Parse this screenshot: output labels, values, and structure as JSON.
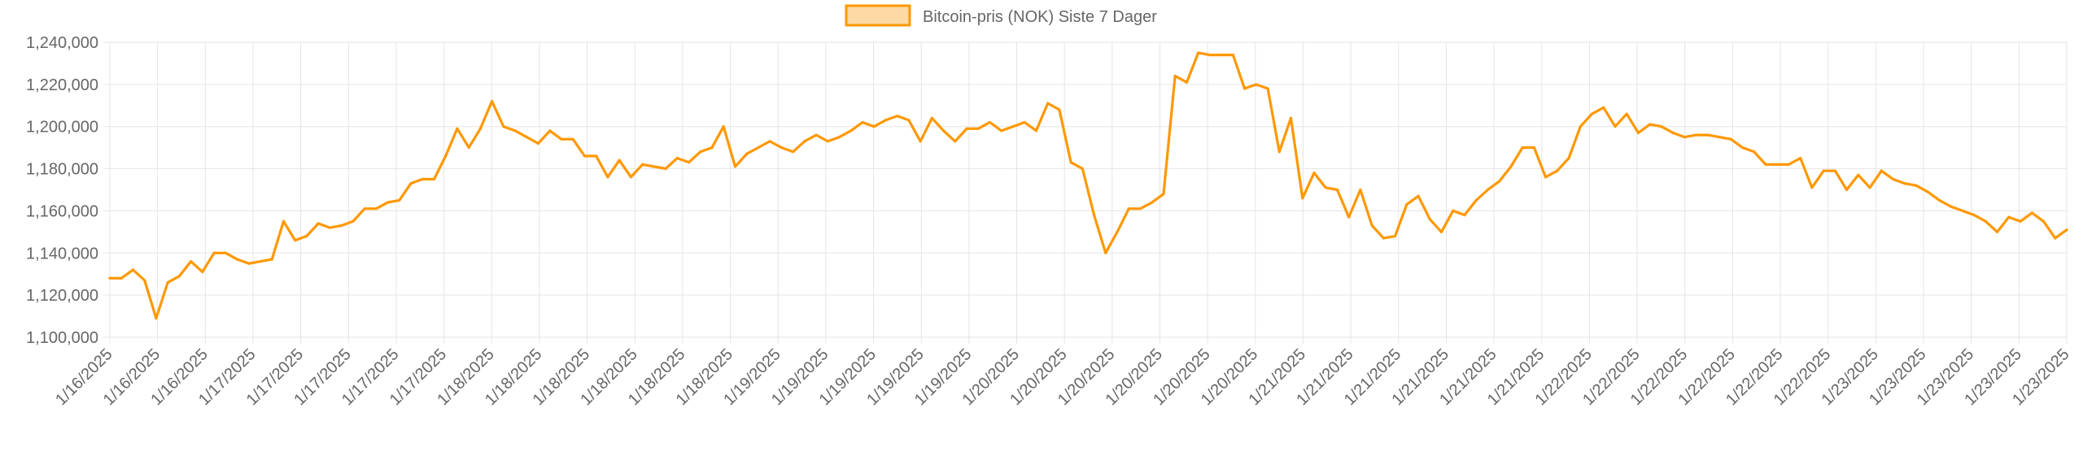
{
  "chart_data": {
    "type": "line",
    "legend": {
      "label": "Bitcoin-pris (NOK) Siste 7 Dager",
      "position": "top"
    },
    "ylim": [
      1100000,
      1240000
    ],
    "y_ticks": [
      "1,240,000",
      "1,220,000",
      "1,200,000",
      "1,180,000",
      "1,160,000",
      "1,140,000",
      "1,120,000",
      "1,100,000"
    ],
    "grid": true,
    "colors": {
      "line": "#FF9800",
      "fill": "#FFD9A3",
      "grid": "#E5E5E5",
      "text": "#666666"
    },
    "x_ticks": [
      "1/16/2025",
      "1/16/2025",
      "1/16/2025",
      "1/17/2025",
      "1/17/2025",
      "1/17/2025",
      "1/17/2025",
      "1/17/2025",
      "1/18/2025",
      "1/18/2025",
      "1/18/2025",
      "1/18/2025",
      "1/18/2025",
      "1/18/2025",
      "1/19/2025",
      "1/19/2025",
      "1/19/2025",
      "1/19/2025",
      "1/19/2025",
      "1/20/2025",
      "1/20/2025",
      "1/20/2025",
      "1/20/2025",
      "1/20/2025",
      "1/20/2025",
      "1/21/2025",
      "1/21/2025",
      "1/21/2025",
      "1/21/2025",
      "1/21/2025",
      "1/21/2025",
      "1/22/2025",
      "1/22/2025",
      "1/22/2025",
      "1/22/2025",
      "1/22/2025",
      "1/22/2025",
      "1/23/2025",
      "1/23/2025",
      "1/23/2025",
      "1/23/2025",
      "1/23/2025"
    ],
    "series": [
      {
        "name": "Bitcoin-pris (NOK) Siste 7 Dager",
        "values": [
          1128000,
          1128000,
          1132000,
          1127000,
          1109000,
          1126000,
          1129000,
          1136000,
          1131000,
          1140000,
          1140000,
          1137000,
          1135000,
          1136000,
          1137000,
          1155000,
          1146000,
          1148000,
          1154000,
          1152000,
          1153000,
          1155000,
          1161000,
          1161000,
          1164000,
          1165000,
          1173000,
          1175000,
          1175000,
          1186000,
          1199000,
          1190000,
          1199000,
          1212000,
          1200000,
          1198000,
          1195000,
          1192000,
          1198000,
          1194000,
          1194000,
          1186000,
          1186000,
          1176000,
          1184000,
          1176000,
          1182000,
          1181000,
          1180000,
          1185000,
          1183000,
          1188000,
          1190000,
          1200000,
          1181000,
          1187000,
          1190000,
          1193000,
          1190000,
          1188000,
          1193000,
          1196000,
          1193000,
          1195000,
          1198000,
          1202000,
          1200000,
          1203000,
          1205000,
          1203000,
          1193000,
          1204000,
          1198000,
          1193000,
          1199000,
          1199000,
          1202000,
          1198000,
          1200000,
          1202000,
          1198000,
          1211000,
          1208000,
          1183000,
          1180000,
          1158000,
          1140000,
          1150000,
          1161000,
          1161000,
          1164000,
          1168000,
          1224000,
          1221000,
          1235000,
          1234000,
          1234000,
          1234000,
          1218000,
          1220000,
          1218000,
          1188000,
          1204000,
          1166000,
          1178000,
          1171000,
          1170000,
          1157000,
          1170000,
          1153000,
          1147000,
          1148000,
          1163000,
          1167000,
          1156000,
          1150000,
          1160000,
          1158000,
          1165000,
          1170000,
          1174000,
          1181000,
          1190000,
          1190000,
          1176000,
          1179000,
          1185000,
          1200000,
          1206000,
          1209000,
          1200000,
          1206000,
          1197000,
          1201000,
          1200000,
          1197000,
          1195000,
          1196000,
          1196000,
          1195000,
          1194000,
          1190000,
          1188000,
          1182000,
          1182000,
          1182000,
          1185000,
          1171000,
          1179000,
          1179000,
          1170000,
          1177000,
          1171000,
          1179000,
          1175000,
          1173000,
          1172000,
          1169000,
          1165000,
          1162000,
          1160000,
          1158000,
          1155000,
          1150000,
          1157000,
          1155000,
          1159000,
          1155000,
          1147000,
          1151000
        ]
      }
    ]
  }
}
